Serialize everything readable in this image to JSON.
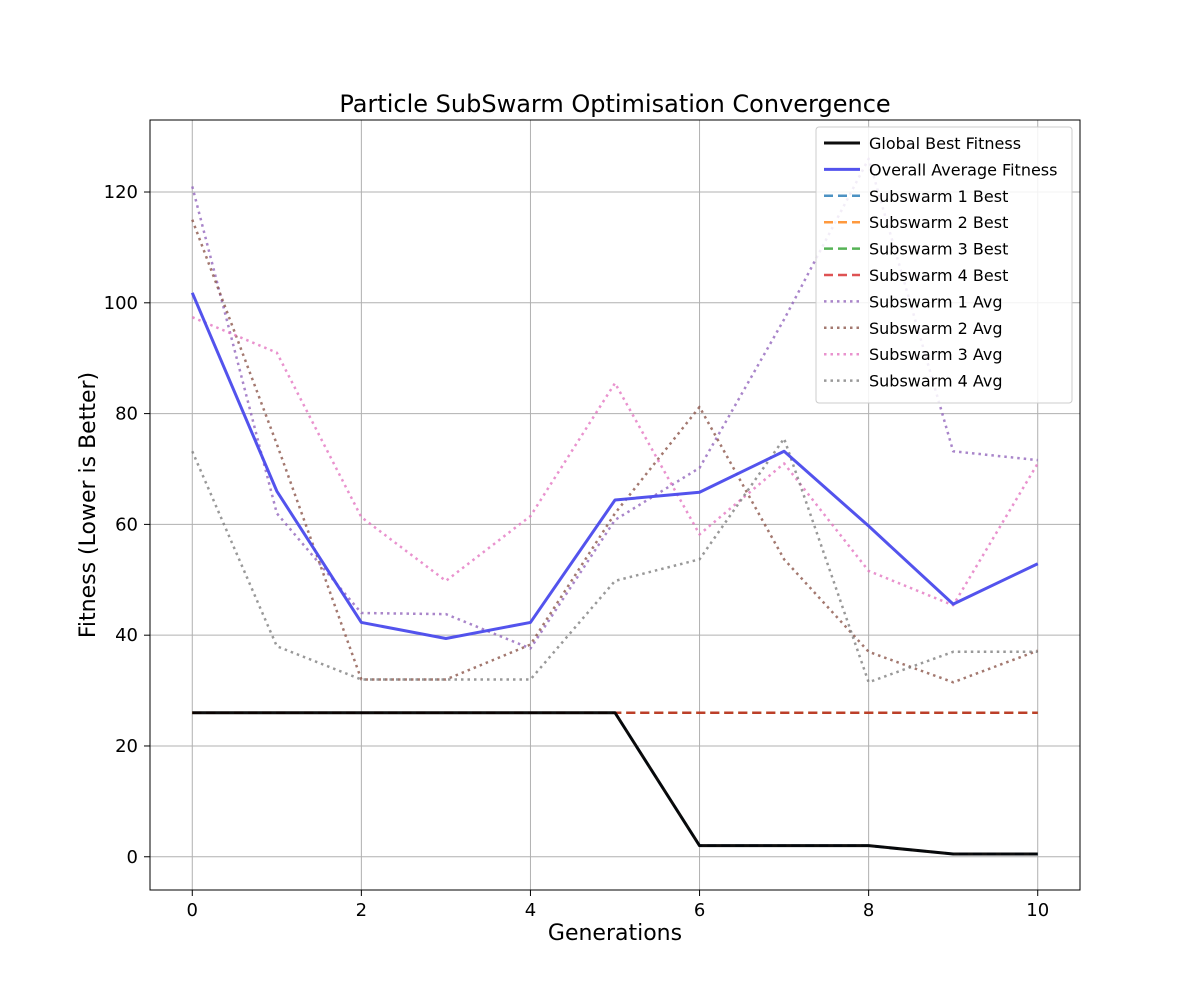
{
  "chart_data": {
    "type": "line",
    "title": "Particle SubSwarm Optimisation Convergence",
    "xlabel": "Generations",
    "ylabel": "Fitness (Lower is Better)",
    "xlim": [
      -0.5,
      10.5
    ],
    "ylim": [
      -6,
      133
    ],
    "xticks": [
      0,
      2,
      4,
      6,
      8,
      10
    ],
    "yticks": [
      0,
      20,
      40,
      60,
      80,
      100,
      120
    ],
    "grid": true,
    "legend_position": "top-right",
    "x": [
      0,
      1,
      2,
      3,
      4,
      5,
      6,
      7,
      8,
      9,
      10
    ],
    "series": [
      {
        "name": "Global Best Fitness",
        "style": "solid",
        "color": "#000000",
        "values": [
          26,
          26,
          26,
          26,
          26,
          26,
          2,
          2,
          2,
          0.5,
          0.5
        ]
      },
      {
        "name": "Overall Average Fitness",
        "style": "solid",
        "color": "#4a4aec",
        "values": [
          101.8,
          66,
          42.3,
          39.4,
          42.3,
          64.4,
          65.8,
          73.2,
          59.7,
          45.6,
          52.9
        ]
      },
      {
        "name": "Subswarm 1 Best",
        "style": "dashed",
        "color": "#1f77b4",
        "values": [
          26,
          26,
          26,
          26,
          26,
          26,
          2,
          2,
          2,
          0.5,
          0.5
        ]
      },
      {
        "name": "Subswarm 2 Best",
        "style": "dashed",
        "color": "#ff7f0e",
        "values": [
          26,
          26,
          26,
          26,
          26,
          26,
          26,
          26,
          26,
          26,
          26
        ]
      },
      {
        "name": "Subswarm 3 Best",
        "style": "dashed",
        "color": "#2ca02c",
        "values": [
          26,
          26,
          26,
          26,
          26,
          26,
          26,
          26,
          26,
          26,
          26
        ]
      },
      {
        "name": "Subswarm 4 Best",
        "style": "dashed",
        "color": "#d62728",
        "values": [
          26,
          26,
          26,
          26,
          26,
          26,
          26,
          26,
          26,
          26,
          26
        ]
      },
      {
        "name": "Subswarm 1 Avg",
        "style": "dotted",
        "color": "#9467bd",
        "values": [
          121,
          62,
          44,
          43.8,
          37.6,
          60.8,
          70.2,
          97,
          126,
          73.2,
          71.6
        ]
      },
      {
        "name": "Subswarm 2 Avg",
        "style": "dotted",
        "color": "#8c564b",
        "values": [
          115,
          74.5,
          32,
          32,
          38.3,
          62,
          81.2,
          53.7,
          37,
          31.5,
          37.2
        ]
      },
      {
        "name": "Subswarm 3 Avg",
        "style": "dotted",
        "color": "#e377c2",
        "values": [
          97.4,
          91,
          61.3,
          49.8,
          61.5,
          85.5,
          58.2,
          71,
          51.6,
          45.4,
          71
        ]
      },
      {
        "name": "Subswarm 4 Avg",
        "style": "dotted",
        "color": "#7f7f7f",
        "values": [
          73.2,
          38,
          32,
          32,
          32,
          49.8,
          53.7,
          75.5,
          31.5,
          37,
          37
        ]
      }
    ]
  }
}
